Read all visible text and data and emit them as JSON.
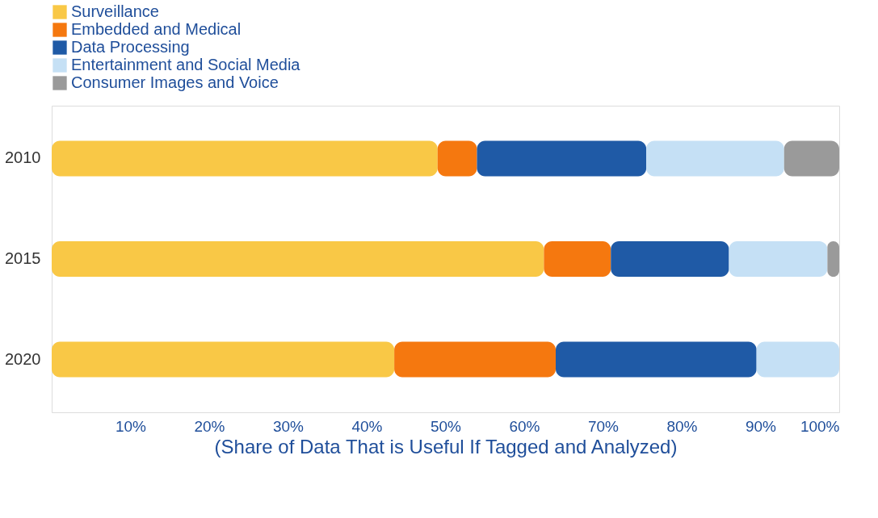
{
  "chart_data": {
    "type": "bar",
    "orientation": "horizontal",
    "stacked": true,
    "xlabel": "(Share of Data That is Useful If Tagged and Analyzed)",
    "categories": [
      "2010",
      "2015",
      "2020"
    ],
    "series": [
      {
        "name": "Surveillance",
        "color": "#f9c846",
        "values": [
          49,
          62.5,
          43.5
        ]
      },
      {
        "name": "Embedded and Medical",
        "color": "#f5780f",
        "values": [
          5,
          8.5,
          20.5
        ]
      },
      {
        "name": "Data Processing",
        "color": "#1f5aa6",
        "values": [
          21.5,
          15,
          25.5
        ]
      },
      {
        "name": "Entertainment and Social Media",
        "color": "#c5e0f5",
        "values": [
          17.5,
          12.5,
          10.5
        ]
      },
      {
        "name": "Consumer Images and Voice",
        "color": "#9a9a9a",
        "values": [
          7,
          1.5,
          0
        ]
      }
    ],
    "xlim": [
      0,
      100
    ],
    "xticks": [
      {
        "value": 10,
        "label": "10%"
      },
      {
        "value": 20,
        "label": "20%"
      },
      {
        "value": 30,
        "label": "30%"
      },
      {
        "value": 40,
        "label": "40%"
      },
      {
        "value": 50,
        "label": "50%"
      },
      {
        "value": 60,
        "label": "60%"
      },
      {
        "value": 70,
        "label": "70%"
      },
      {
        "value": 80,
        "label": "80%"
      },
      {
        "value": 90,
        "label": "90%"
      },
      {
        "value": 100,
        "label": "100%"
      }
    ],
    "grid": false,
    "legend": "top"
  }
}
